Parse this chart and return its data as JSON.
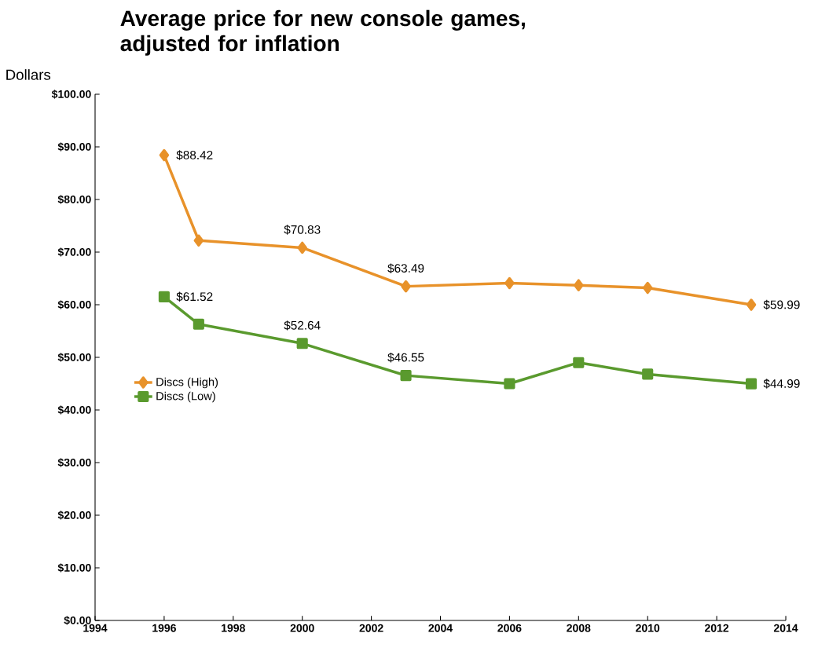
{
  "chart_data": {
    "type": "line",
    "title": "Average price for new console games, adjusted for inflation",
    "ylabel": "Dollars",
    "x": [
      1996,
      1997,
      2000,
      2003,
      2006,
      2008,
      2010,
      2013
    ],
    "series": [
      {
        "name": "Discs (High)",
        "color": "#e8922a",
        "marker": "diamond",
        "values": [
          88.42,
          72.2,
          70.83,
          63.49,
          64.1,
          63.7,
          63.2,
          59.99
        ],
        "value_labels": [
          "$88.42",
          null,
          "$70.83",
          "$63.49",
          null,
          null,
          null,
          "$59.99"
        ]
      },
      {
        "name": "Discs (Low)",
        "color": "#5a9a2e",
        "marker": "square",
        "values": [
          61.52,
          56.3,
          52.64,
          46.55,
          45.0,
          49.0,
          46.8,
          44.99
        ],
        "value_labels": [
          "$61.52",
          null,
          "$52.64",
          "$46.55",
          null,
          null,
          null,
          "$44.99"
        ]
      }
    ],
    "xlim": [
      1994,
      2014
    ],
    "xticks": [
      1994,
      1996,
      1998,
      2000,
      2002,
      2004,
      2006,
      2008,
      2010,
      2012,
      2014
    ],
    "ylim": [
      0,
      100
    ],
    "yticks": [
      {
        "value": 0,
        "label": "$0.00"
      },
      {
        "value": 10,
        "label": "$10.00"
      },
      {
        "value": 20,
        "label": "$20.00"
      },
      {
        "value": 30,
        "label": "$30.00"
      },
      {
        "value": 40,
        "label": "$40.00"
      },
      {
        "value": 50,
        "label": "$50.00"
      },
      {
        "value": 60,
        "label": "$60.00"
      },
      {
        "value": 70,
        "label": "$70.00"
      },
      {
        "value": 80,
        "label": "$80.00"
      },
      {
        "value": 90,
        "label": "$90.00"
      },
      {
        "value": 100,
        "label": "$100.00"
      }
    ],
    "grid": false,
    "legend": "left",
    "line_style": "solid"
  }
}
